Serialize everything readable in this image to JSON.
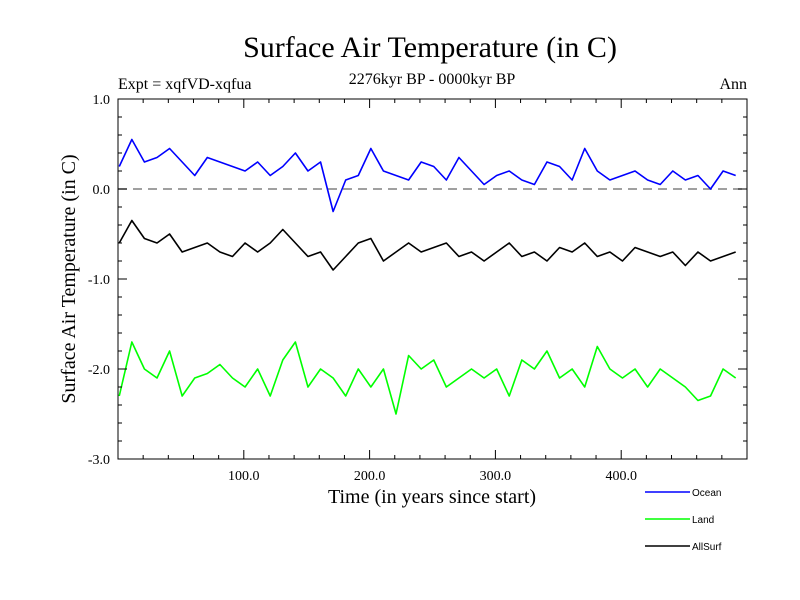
{
  "chart_data": {
    "type": "line",
    "title": "Surface Air Temperature (in C)",
    "subtitle": "2276kyr BP - 0000kyr BP",
    "left_label": "Expt = xqfVD-xqfua",
    "right_label": "Ann",
    "xlabel": "Time (in years since start)",
    "ylabel": "Surface Air Temperature (in C)",
    "xlim": [
      0,
      500
    ],
    "ylim": [
      -3.0,
      1.0
    ],
    "x_ticks": [
      100,
      200,
      300,
      400
    ],
    "x_tick_labels": [
      "100.0",
      "200.0",
      "300.0",
      "400.0"
    ],
    "y_ticks": [
      1.0,
      0.0,
      -1.0,
      -2.0,
      -3.0
    ],
    "y_tick_labels": [
      "1.0",
      "0.0",
      "-1.0",
      "-2.0",
      "-3.0"
    ],
    "reference_line": {
      "y": 0.0,
      "style": "dashed",
      "color": "#808080"
    },
    "series": [
      {
        "name": "Ocean",
        "color": "#0000ff",
        "x_start": 1,
        "x_step": 10,
        "values": [
          0.25,
          0.55,
          0.3,
          0.35,
          0.45,
          0.3,
          0.15,
          0.35,
          0.3,
          0.25,
          0.2,
          0.3,
          0.15,
          0.25,
          0.4,
          0.2,
          0.3,
          -0.25,
          0.1,
          0.15,
          0.45,
          0.2,
          0.15,
          0.1,
          0.3,
          0.25,
          0.1,
          0.35,
          0.2,
          0.05,
          0.15,
          0.2,
          0.1,
          0.05,
          0.3,
          0.25,
          0.1,
          0.45,
          0.2,
          0.1,
          0.15,
          0.2,
          0.1,
          0.05,
          0.2,
          0.1,
          0.15,
          0.0,
          0.2,
          0.15
        ]
      },
      {
        "name": "Land",
        "color": "#00ff00",
        "x_start": 1,
        "x_step": 10,
        "values": [
          -2.3,
          -1.7,
          -2.0,
          -2.1,
          -1.8,
          -2.3,
          -2.1,
          -2.05,
          -1.95,
          -2.1,
          -2.2,
          -2.0,
          -2.3,
          -1.9,
          -1.7,
          -2.2,
          -2.0,
          -2.1,
          -2.3,
          -2.0,
          -2.2,
          -2.0,
          -2.5,
          -1.85,
          -2.0,
          -1.9,
          -2.2,
          -2.1,
          -2.0,
          -2.1,
          -2.0,
          -2.3,
          -1.9,
          -2.0,
          -1.8,
          -2.1,
          -2.0,
          -2.2,
          -1.75,
          -2.0,
          -2.1,
          -2.0,
          -2.2,
          -2.0,
          -2.1,
          -2.2,
          -2.35,
          -2.3,
          -2.0,
          -2.1
        ]
      },
      {
        "name": "AllSurf",
        "color": "#000000",
        "x_start": 1,
        "x_step": 10,
        "values": [
          -0.6,
          -0.35,
          -0.55,
          -0.6,
          -0.5,
          -0.7,
          -0.65,
          -0.6,
          -0.7,
          -0.75,
          -0.6,
          -0.7,
          -0.6,
          -0.45,
          -0.6,
          -0.75,
          -0.7,
          -0.9,
          -0.75,
          -0.6,
          -0.55,
          -0.8,
          -0.7,
          -0.6,
          -0.7,
          -0.65,
          -0.6,
          -0.75,
          -0.7,
          -0.8,
          -0.7,
          -0.6,
          -0.75,
          -0.7,
          -0.8,
          -0.65,
          -0.7,
          -0.6,
          -0.75,
          -0.7,
          -0.8,
          -0.65,
          -0.7,
          -0.75,
          -0.7,
          -0.85,
          -0.7,
          -0.8,
          -0.75,
          -0.7
        ]
      }
    ],
    "legend": [
      "Ocean",
      "Land",
      "AllSurf"
    ]
  }
}
